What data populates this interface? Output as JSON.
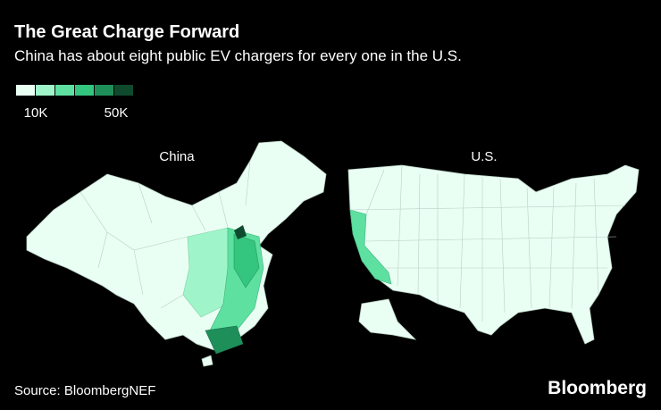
{
  "header": {
    "title": "The Great Charge Forward",
    "subtitle": "China has about eight public EV chargers for every one in the U.S."
  },
  "legend": {
    "colors": [
      "#eafff4",
      "#9ff5c9",
      "#5ee0a0",
      "#34c57e",
      "#1f8f59",
      "#0f4a2e"
    ],
    "labels": [
      "10K",
      "50K"
    ]
  },
  "maps": [
    {
      "label": "China"
    },
    {
      "label": "U.S."
    }
  ],
  "footer": {
    "source": "Source: BloombergNEF",
    "brand": "Bloomberg"
  }
}
